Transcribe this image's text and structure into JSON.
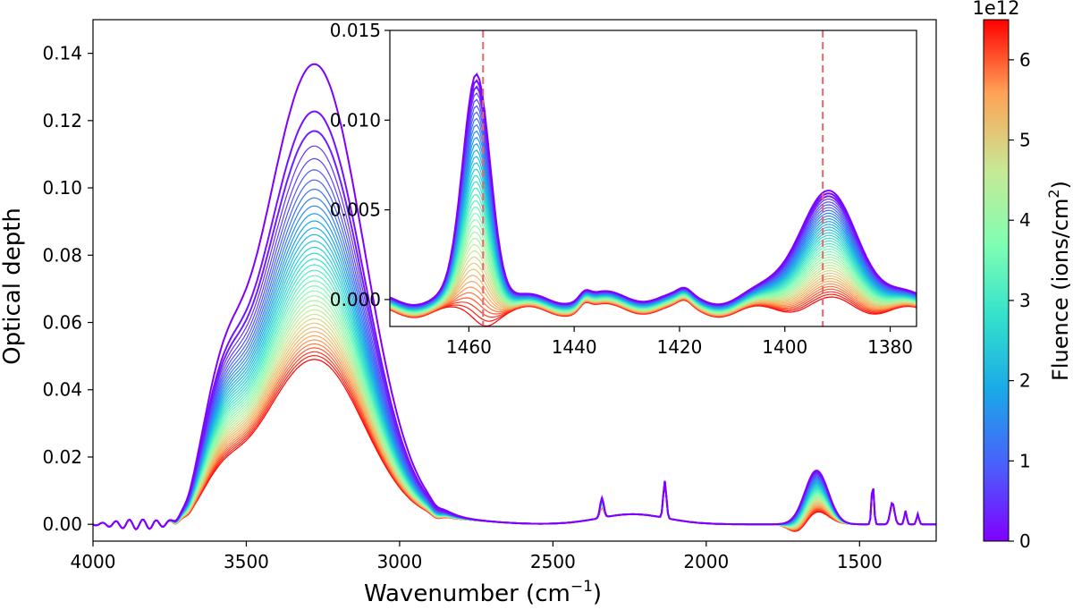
{
  "chart_data": [
    {
      "id": "main",
      "type": "line",
      "title": "",
      "xlabel": "Wavenumber (cm",
      "xlabel_sup": "−1",
      "xlabel_suffix": ")",
      "ylabel": "Optical depth",
      "xlim": [
        4000,
        1250
      ],
      "ylim": [
        -0.005,
        0.15
      ],
      "xticks": [
        4000,
        3500,
        3000,
        2500,
        2000,
        1500
      ],
      "xtick_labels": [
        "4000",
        "3500",
        "3000",
        "2500",
        "2000",
        "1500"
      ],
      "yticks": [
        0.0,
        0.02,
        0.04,
        0.06,
        0.08,
        0.1,
        0.12,
        0.14
      ],
      "ytick_labels": [
        "0.00",
        "0.02",
        "0.04",
        "0.06",
        "0.08",
        "0.10",
        "0.12",
        "0.14"
      ],
      "series_count": 40,
      "series_description": "Spectra colored by fluence from 0 (violet) to 6.5e12 ions/cm² (red)",
      "peak_main": {
        "center_cm": 3250,
        "max_od": 0.134,
        "min_od_at_high_fluence": 0.048
      },
      "shoulder_cm": 3580,
      "small_peaks_cm": [
        2340,
        2135,
        1640,
        1457,
        1393,
        1350,
        1310
      ]
    },
    {
      "id": "inset",
      "type": "line",
      "xlim": [
        1475,
        1375
      ],
      "ylim": [
        -0.0015,
        0.015
      ],
      "xticks": [
        1460,
        1440,
        1420,
        1400,
        1380
      ],
      "xtick_labels": [
        "1460",
        "1440",
        "1420",
        "1400",
        "1380"
      ],
      "yticks": [
        0.0,
        0.005,
        0.01,
        0.015
      ],
      "ytick_labels": [
        "0.000",
        "0.005",
        "0.010",
        "0.015"
      ],
      "vlines_cm": [
        1457.3,
        1392.8
      ],
      "vline_color": "#f06464",
      "peak1": {
        "center_cm": 1458.5,
        "max_od": 0.0127
      },
      "peak2": {
        "center_cm": 1392,
        "max_od": 0.0058
      }
    }
  ],
  "colorbar": {
    "label": "Fluence (ions/cm",
    "label_sup": "2",
    "label_suffix": ")",
    "exponent": "1e12",
    "min": 0,
    "max": 6.5,
    "ticks": [
      0,
      1,
      2,
      3,
      4,
      5,
      6
    ],
    "tick_labels": [
      "0",
      "1",
      "2",
      "3",
      "4",
      "5",
      "6"
    ],
    "colormap": "rainbow"
  }
}
